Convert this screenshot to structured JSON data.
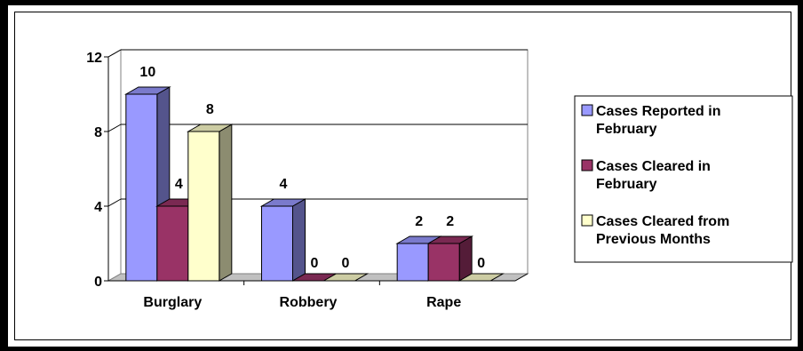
{
  "chart_data": {
    "type": "bar",
    "title": "",
    "xlabel": "",
    "ylabel": "",
    "categories": [
      "Burglary",
      "Robbery",
      "Rape"
    ],
    "series": [
      {
        "name": "Cases Reported in February",
        "values": [
          10,
          4,
          2
        ],
        "color": "#9999ff"
      },
      {
        "name": "Cases Cleared in February",
        "values": [
          4,
          0,
          2
        ],
        "color": "#993366"
      },
      {
        "name": "Cases Cleared from Previous Months",
        "values": [
          8,
          0,
          0
        ],
        "color": "#ffffcc"
      }
    ],
    "ylim": [
      0,
      12
    ],
    "yticks": [
      "0",
      "4",
      "8",
      "12"
    ],
    "grid": true,
    "legend": "right",
    "data_labels": true,
    "style": "3d-bars"
  },
  "legend": {
    "items": [
      {
        "lines": [
          "Cases Reported in",
          "February"
        ]
      },
      {
        "lines": [
          "Cases Cleared in",
          "February"
        ]
      },
      {
        "lines": [
          "Cases Cleared from",
          "Previous Months"
        ]
      }
    ]
  }
}
